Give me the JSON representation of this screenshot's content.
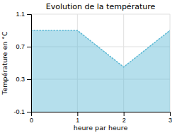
{
  "chart_data": {
    "type": "area",
    "title": "Evolution de la température",
    "xlabel": "heure par heure",
    "ylabel": "Température en °C",
    "x": [
      0,
      1,
      2,
      3
    ],
    "values": [
      0.9,
      0.9,
      0.45,
      0.9
    ],
    "color": "#5ab8d4",
    "line_style": "dotted",
    "xlim": [
      0,
      3
    ],
    "ylim": [
      -0.1,
      1.1
    ],
    "xticks": [
      0,
      1,
      2,
      3
    ],
    "yticks": [
      -0.1,
      0.3,
      0.7,
      1.1
    ],
    "grid": true
  }
}
